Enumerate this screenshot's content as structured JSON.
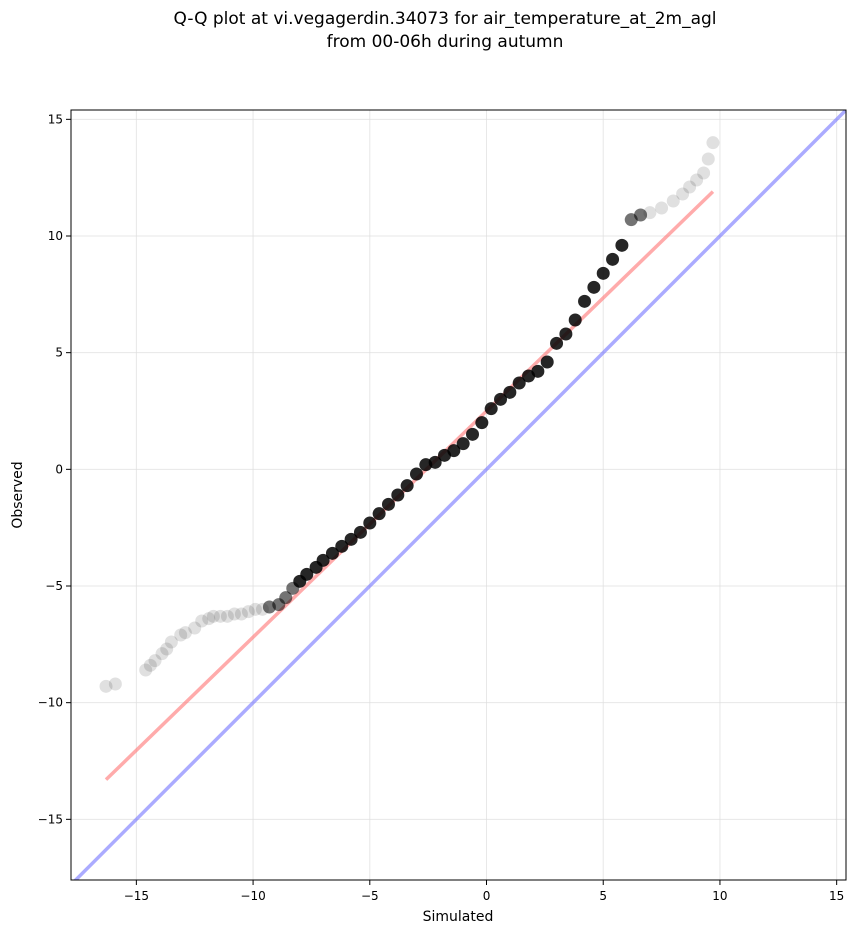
{
  "chart_data": {
    "type": "scatter",
    "title_line1": "Q-Q plot at vi.vegagerdin.34073 for air_temperature_at_2m_agl",
    "title_line2": "from 00-06h during autumn",
    "xlabel": "Simulated",
    "ylabel": "Observed",
    "xlim": [
      -17.8,
      15.4
    ],
    "ylim": [
      -17.6,
      15.4
    ],
    "xticks": [
      -15,
      -10,
      -5,
      0,
      5,
      10,
      15
    ],
    "yticks": [
      -15,
      -10,
      -5,
      0,
      5,
      10,
      15
    ],
    "xtick_labels": [
      "−15",
      "−10",
      "−5",
      "0",
      "5",
      "10",
      "15"
    ],
    "ytick_labels": [
      "−15",
      "−10",
      "−5",
      "0",
      "5",
      "10",
      "15"
    ],
    "grid": true,
    "colors": {
      "points": "#000000",
      "fit_line": "#ff7777",
      "identity_line": "#7777ff",
      "grid": "#dddddd"
    },
    "series": [
      {
        "kind": "points",
        "x": [
          -16.3,
          -15.9,
          -14.6,
          -14.4,
          -14.2,
          -13.9,
          -13.7,
          -13.5,
          -13.1,
          -12.9,
          -12.5,
          -12.2,
          -11.9,
          -11.7,
          -11.4,
          -11.1,
          -10.8,
          -10.5,
          -10.2,
          -9.9,
          -9.6,
          -9.3,
          -8.9,
          -8.6,
          -8.3,
          -8.0,
          -7.7,
          -7.3,
          -7.0,
          -6.6,
          -6.2,
          -5.8,
          -5.4,
          -5.0,
          -4.6,
          -4.2,
          -3.8,
          -3.4,
          -3.0,
          -2.6,
          -2.2,
          -1.8,
          -1.4,
          -1.0,
          -0.6,
          -0.2,
          0.2,
          0.6,
          1.0,
          1.4,
          1.8,
          2.2,
          2.6,
          3.0,
          3.4,
          3.8,
          4.2,
          4.6,
          5.0,
          5.4,
          5.8,
          6.2,
          6.6,
          7.0,
          7.5,
          8.0,
          8.4,
          8.7,
          9.0,
          9.3,
          9.5,
          9.7
        ],
        "y": [
          -9.3,
          -9.2,
          -8.6,
          -8.4,
          -8.2,
          -7.9,
          -7.7,
          -7.4,
          -7.1,
          -7.0,
          -6.8,
          -6.5,
          -6.4,
          -6.3,
          -6.3,
          -6.3,
          -6.2,
          -6.2,
          -6.1,
          -6.0,
          -6.0,
          -5.9,
          -5.8,
          -5.5,
          -5.1,
          -4.8,
          -4.5,
          -4.2,
          -3.9,
          -3.6,
          -3.3,
          -3.0,
          -2.7,
          -2.3,
          -1.9,
          -1.5,
          -1.1,
          -0.7,
          -0.2,
          0.2,
          0.3,
          0.6,
          0.8,
          1.1,
          1.5,
          2.0,
          2.6,
          3.0,
          3.3,
          3.7,
          4.0,
          4.2,
          4.6,
          5.4,
          5.8,
          6.4,
          7.2,
          7.8,
          8.4,
          9.0,
          9.6,
          10.7,
          10.9,
          11.0,
          11.2,
          11.5,
          11.8,
          12.1,
          12.4,
          12.7,
          13.3,
          14.0
        ]
      },
      {
        "kind": "fit_line",
        "x": [
          -16.3,
          9.7
        ],
        "y": [
          -13.3,
          11.9
        ]
      },
      {
        "kind": "identity_line",
        "x": [
          -17.8,
          15.4
        ],
        "y": [
          -17.8,
          15.4
        ]
      }
    ]
  }
}
